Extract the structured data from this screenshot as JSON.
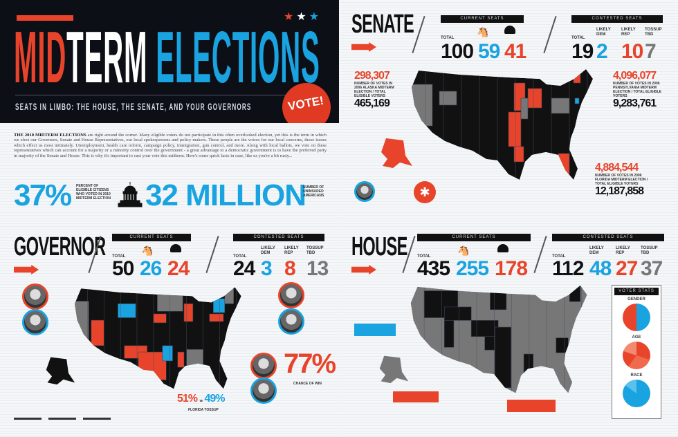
{
  "header": {
    "title_mid": "MID",
    "title_term": "TERM",
    "title_elections": "ELECTIONS",
    "subtitle": "SEATS IN LIMBO: THE HOUSE, THE SENATE, AND YOUR GOVERNORS",
    "badge": "VOTE!",
    "stars": [
      "red",
      "white",
      "blue"
    ]
  },
  "intro": {
    "lead": "THE 2010 MIDTERM ELECTIONS",
    "body": "are right around the corner. Many eligible voters do not participate in this often overlooked election, yet this is the term in which we elect our Governors, Senate and House Representatives, our local spokespersons and policy makers. These people are the voices for our local concerns, those issues which effect us most intimately. Unemployment, health care reform, campaign policy, immigration, gun control, and more. Along with local ballots, we vote on these representatives which can account for a majority or a minority control over the government - a great advantage to a democratic government is to have the preferred party in majority of the Senate and House. This is why it's important to cast your vote this midterm. Here's some quick facts in case, like us you're a bit rusty..."
  },
  "facts": [
    {
      "value": "37%",
      "label": "PERCENT OF ELIGIBLE CITIZENS WHO VOTED IN 2010 MIDTERM ELECTION"
    },
    {
      "value": "32 MILLION",
      "label": "NUMBER OF UNINSURED AMERICANS"
    }
  ],
  "labels": {
    "current": "CURRENT SEATS",
    "contested": "CONTESTED SEATS",
    "total": "TOTAL",
    "likely_dem": "LIKELY DEM",
    "likely_rep": "LIKELY REP",
    "tossup": "TOSSUP TBD"
  },
  "senate": {
    "title": "SENATE",
    "current": {
      "total": "100",
      "dem": "59",
      "rep": "41"
    },
    "contested": {
      "total": "19",
      "likely_dem": "2",
      "likely_rep": "10",
      "tossup": "7"
    },
    "callouts": [
      {
        "votes": "298,307",
        "eligible": "465,169",
        "desc": "NUMBER OF VOTES IN 2006 ALASKA MIDTERM ELECTION / TOTAL ELIGIBLE VOTERS"
      },
      {
        "votes": "4,096,077",
        "eligible": "9,283,761",
        "desc": "NUMBER OF VOTES IN 2006 PENNSYLVANIA MIDTERM ELECTION / TOTAL ELIGIBLE VOTERS"
      },
      {
        "votes": "4,884,544",
        "eligible": "12,187,858",
        "desc": "NUMBER OF VOTES IN 2006 FLORIDA MIDTERM ELECTION / TOTAL ELIGIBLE VOTERS"
      }
    ]
  },
  "governor": {
    "title": "GOVERNOR",
    "current": {
      "total": "50",
      "dem": "26",
      "rep": "24"
    },
    "contested": {
      "total": "24",
      "likely_dem": "3",
      "likely_rep": "8",
      "tossup": "13"
    },
    "chance": "77%",
    "chance_label": "CHANCE OF WIN",
    "florida_rep": "51%",
    "florida_vs": "vs",
    "florida_dem": "49%",
    "florida_label": "FLORIDA TOSSUP"
  },
  "house": {
    "title": "HOUSE",
    "current": {
      "total": "435",
      "dem": "255",
      "rep": "178"
    },
    "contested": {
      "total": "112",
      "likely_dem": "48",
      "likely_rep": "27",
      "tossup": "37"
    },
    "voter_stats": {
      "title": "VOTER STATS",
      "gender": "GENDER",
      "age": "AGE",
      "race": "RACE"
    }
  },
  "colors": {
    "dem": "#19a3e0",
    "rep": "#e8442b",
    "tossup": "#777777",
    "dark": "#111111"
  }
}
